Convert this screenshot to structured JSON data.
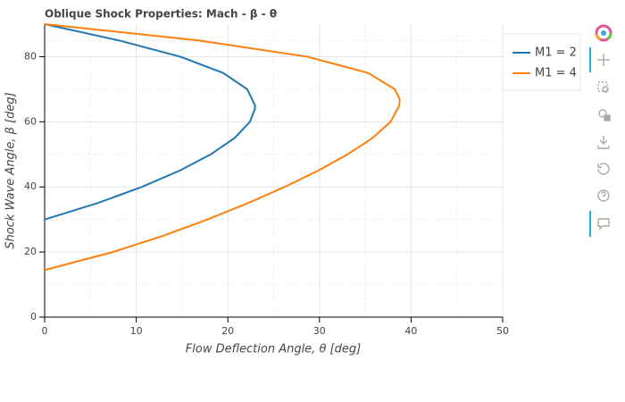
{
  "chart_data": {
    "type": "line",
    "title": "Oblique Shock Properties: Mach - β - θ",
    "x_label": "Flow Deflection Angle, θ [deg]",
    "y_label": "Shock Wave Angle, β [deg]",
    "xlim": [
      0,
      50
    ],
    "ylim": [
      0,
      90
    ],
    "xticks": [
      0,
      10,
      20,
      30,
      40,
      50
    ],
    "yticks": [
      0,
      20,
      40,
      60,
      80
    ],
    "grid": true,
    "legend": "top-right",
    "series": [
      {
        "name": "M1 = 2",
        "color": "#1f77b4",
        "x": [
          0,
          5.75,
          10.62,
          14.74,
          18.13,
          20.73,
          22.41,
          22.96,
          22.97,
          22.12,
          19.49,
          14.8,
          8.08,
          0
        ],
        "values": [
          30,
          35,
          40,
          45,
          50,
          55,
          60,
          64,
          65,
          70,
          75,
          80,
          85,
          90
        ]
      },
      {
        "name": "M1 = 4",
        "color": "#ff7f0e",
        "x": [
          0,
          7.45,
          12.94,
          17.78,
          22.18,
          26.21,
          29.85,
          33.07,
          35.78,
          37.76,
          38.72,
          38.75,
          38.22,
          35.31,
          28.66,
          16.77,
          0
        ],
        "values": [
          14.48,
          20,
          25,
          30,
          35,
          40,
          45,
          50,
          55,
          60,
          65,
          67,
          70,
          75,
          80,
          85,
          90
        ]
      }
    ]
  }
}
